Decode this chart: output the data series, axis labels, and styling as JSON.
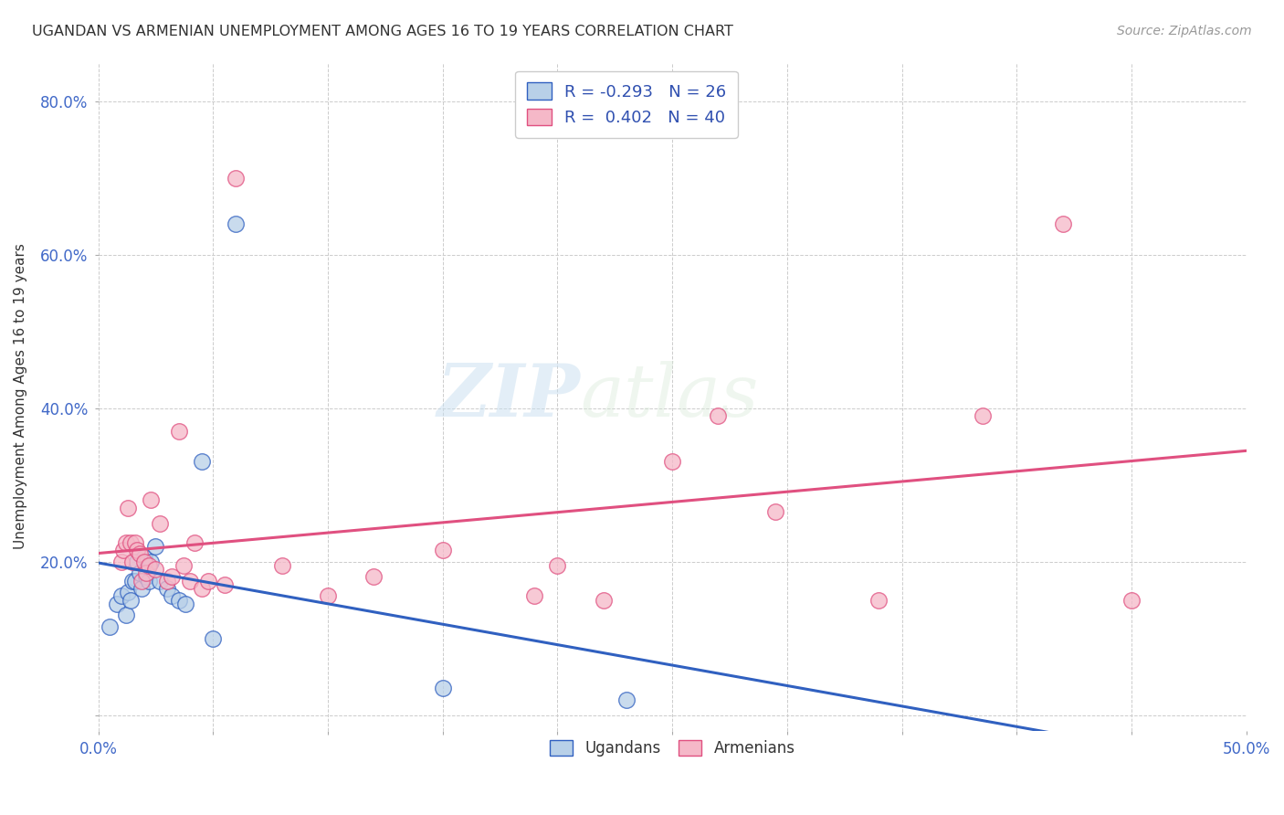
{
  "title": "UGANDAN VS ARMENIAN UNEMPLOYMENT AMONG AGES 16 TO 19 YEARS CORRELATION CHART",
  "source": "Source: ZipAtlas.com",
  "ylabel": "Unemployment Among Ages 16 to 19 years",
  "xlim": [
    0.0,
    0.5
  ],
  "ylim": [
    -0.02,
    0.85
  ],
  "xticks": [
    0.0,
    0.05,
    0.1,
    0.15,
    0.2,
    0.25,
    0.3,
    0.35,
    0.4,
    0.45,
    0.5
  ],
  "yticks": [
    0.0,
    0.2,
    0.4,
    0.6,
    0.8
  ],
  "background_color": "#ffffff",
  "grid_color": "#cccccc",
  "watermark_zip": "ZIP",
  "watermark_atlas": "atlas",
  "ugandan_color": "#b8d0e8",
  "armenian_color": "#f5b8c8",
  "ugandan_line_color": "#3060c0",
  "armenian_line_color": "#e05080",
  "ugandan_R": -0.293,
  "ugandan_N": 26,
  "armenian_R": 0.402,
  "armenian_N": 40,
  "ugandan_x": [
    0.005,
    0.008,
    0.01,
    0.012,
    0.013,
    0.014,
    0.015,
    0.016,
    0.017,
    0.018,
    0.019,
    0.02,
    0.021,
    0.022,
    0.023,
    0.025,
    0.027,
    0.03,
    0.032,
    0.035,
    0.038,
    0.045,
    0.05,
    0.06,
    0.15,
    0.23
  ],
  "ugandan_y": [
    0.115,
    0.145,
    0.155,
    0.13,
    0.16,
    0.15,
    0.175,
    0.175,
    0.2,
    0.185,
    0.165,
    0.205,
    0.18,
    0.175,
    0.2,
    0.22,
    0.175,
    0.165,
    0.155,
    0.15,
    0.145,
    0.33,
    0.1,
    0.64,
    0.035,
    0.02
  ],
  "armenian_x": [
    0.01,
    0.011,
    0.012,
    0.013,
    0.014,
    0.015,
    0.016,
    0.017,
    0.018,
    0.019,
    0.02,
    0.021,
    0.022,
    0.023,
    0.025,
    0.027,
    0.03,
    0.032,
    0.035,
    0.037,
    0.04,
    0.042,
    0.045,
    0.048,
    0.055,
    0.06,
    0.08,
    0.1,
    0.12,
    0.15,
    0.19,
    0.2,
    0.22,
    0.25,
    0.27,
    0.295,
    0.34,
    0.385,
    0.42,
    0.45
  ],
  "armenian_y": [
    0.2,
    0.215,
    0.225,
    0.27,
    0.225,
    0.2,
    0.225,
    0.215,
    0.21,
    0.175,
    0.2,
    0.185,
    0.195,
    0.28,
    0.19,
    0.25,
    0.175,
    0.18,
    0.37,
    0.195,
    0.175,
    0.225,
    0.165,
    0.175,
    0.17,
    0.7,
    0.195,
    0.155,
    0.18,
    0.215,
    0.155,
    0.195,
    0.15,
    0.33,
    0.39,
    0.265,
    0.15,
    0.39,
    0.64,
    0.15
  ]
}
